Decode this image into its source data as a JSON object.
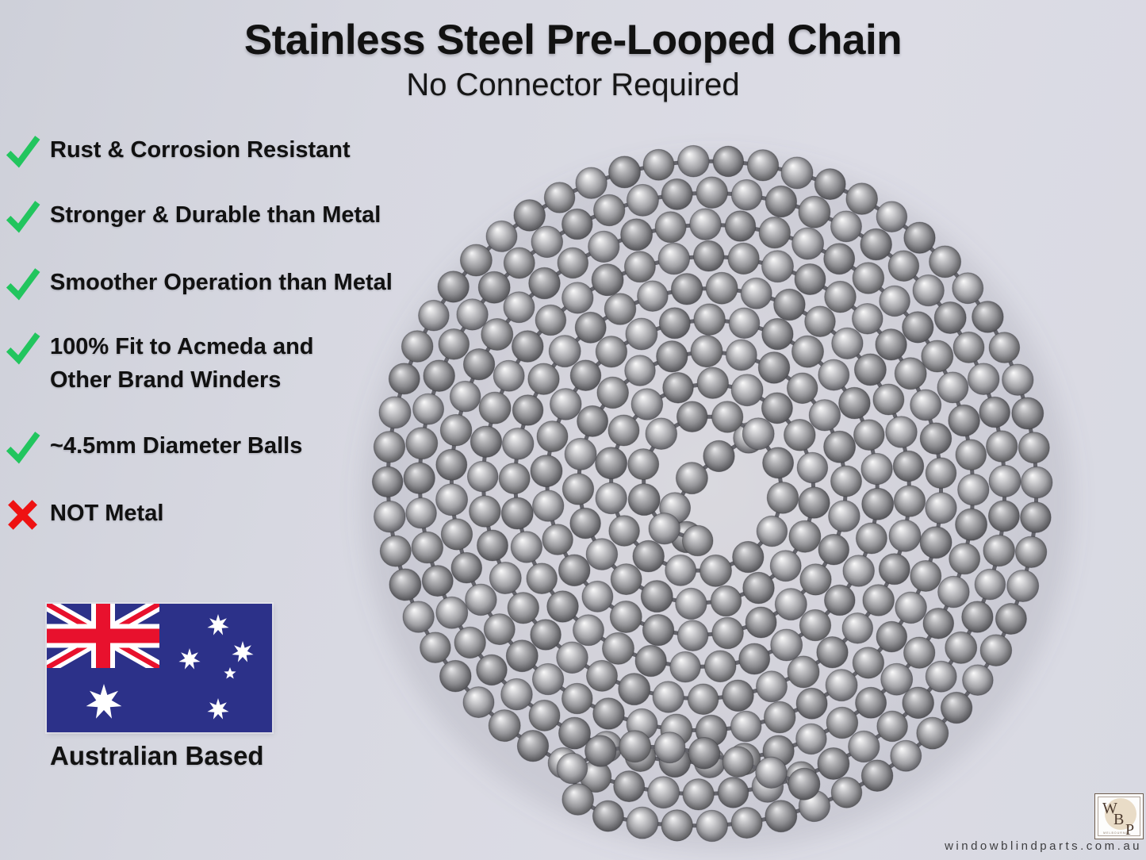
{
  "header": {
    "title": "Stainless Steel Pre-Looped Chain",
    "subtitle": "No Connector Required"
  },
  "features": [
    {
      "icon": "check",
      "text": "Rust & Corrosion Resistant"
    },
    {
      "icon": "check",
      "text": "Stronger & Durable than Metal"
    },
    {
      "icon": "check",
      "text": "Smoother Operation than Metal"
    },
    {
      "icon": "check",
      "text": "100% Fit to Acmeda and",
      "text2": "Other Brand Winders"
    },
    {
      "icon": "check",
      "text": "~4.5mm Diameter Balls"
    },
    {
      "icon": "cross",
      "text": "NOT Metal"
    }
  ],
  "origin": {
    "flag_icon": "australian-flag",
    "label": "Australian Based"
  },
  "branding": {
    "logo_letters": [
      "W",
      "B",
      "P"
    ],
    "logo_subtext": "MELBOURNE",
    "website": "windowblindparts.com.au"
  },
  "product_photo": {
    "subject": "stainless steel ball chain coiled in a spiral loop"
  },
  "colors": {
    "check_green": "#22c55e",
    "cross_red": "#ee1212",
    "flag_blue": "#2c3189",
    "flag_red": "#e8112d",
    "flag_white": "#ffffff",
    "background": "#d8d9e2",
    "text_dark": "#121212",
    "website_text": "#3e3e40"
  }
}
